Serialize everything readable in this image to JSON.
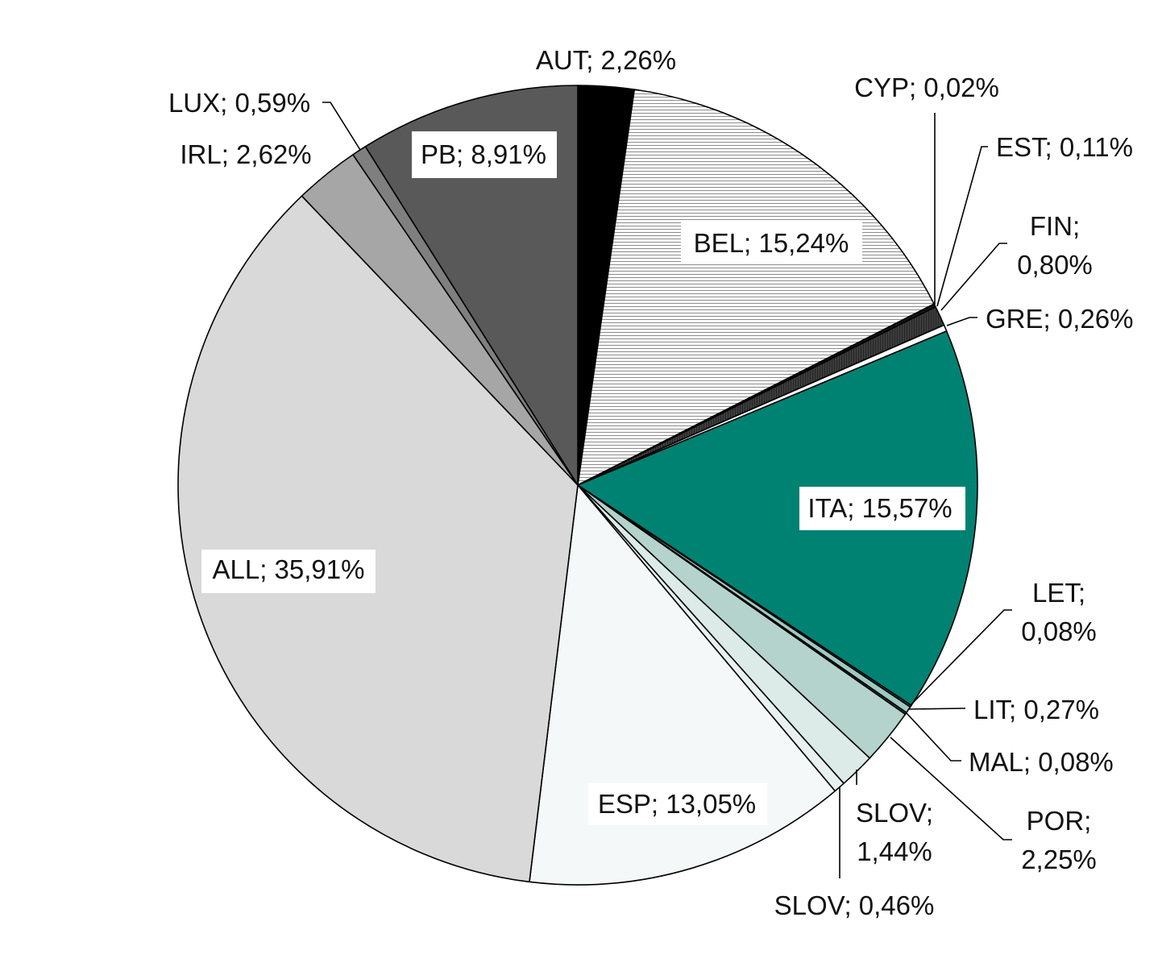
{
  "chart_data": {
    "type": "pie",
    "title": "",
    "start": "12 o'clock",
    "direction": "clockwise",
    "slices": [
      {
        "name": "AUT",
        "value": 2.26,
        "label": "AUT; 2,26%",
        "color": "#000000",
        "pattern": "solid"
      },
      {
        "name": "BEL",
        "value": 15.24,
        "label": "BEL; 15,24%",
        "color": "#ffffff",
        "pattern": "horizontal-lines"
      },
      {
        "name": "CYP",
        "value": 0.02,
        "label": "CYP; 0,02%",
        "color": "#ffffff",
        "pattern": "solid"
      },
      {
        "name": "EST",
        "value": 0.11,
        "label": "EST; 0,11%",
        "color": "#1a1a1a",
        "pattern": "solid"
      },
      {
        "name": "FIN",
        "value": 0.8,
        "label": "FIN; 0,80%",
        "color": "#3c3c3c",
        "pattern": "vertical-lines"
      },
      {
        "name": "GRE",
        "value": 0.26,
        "label": "GRE; 0,26%",
        "color": "#ffffff",
        "pattern": "solid"
      },
      {
        "name": "ITA",
        "value": 15.57,
        "label": "ITA; 15,57%",
        "color": "#008272",
        "pattern": "solid"
      },
      {
        "name": "LET",
        "value": 0.08,
        "label": "LET; 0,08%",
        "color": "#1f5f55",
        "pattern": "solid"
      },
      {
        "name": "LIT",
        "value": 0.27,
        "label": "LIT; 0,27%",
        "color": "#9fc8c0",
        "pattern": "solid"
      },
      {
        "name": "MAL",
        "value": 0.08,
        "label": "MAL; 0,08%",
        "color": "#2f4f4a",
        "pattern": "solid"
      },
      {
        "name": "POR",
        "value": 2.25,
        "label": "POR; 2,25%",
        "color": "#b4d3cd",
        "pattern": "solid"
      },
      {
        "name": "SLOV",
        "value": 1.44,
        "label": "SLOV; 1,44%",
        "color": "#dcebe8",
        "pattern": "solid"
      },
      {
        "name": "SLOV",
        "value": 0.46,
        "label": "SLOV; 0,46%",
        "color": "#e8f1ef",
        "pattern": "solid"
      },
      {
        "name": "ESP",
        "value": 13.05,
        "label": "ESP; 13,05%",
        "color": "#f4f8f8",
        "pattern": "solid"
      },
      {
        "name": "ALL",
        "value": 35.91,
        "label": "ALL; 35,91%",
        "color": "#d9d9d9",
        "pattern": "solid"
      },
      {
        "name": "IRL",
        "value": 2.62,
        "label": "IRL; 2,62%",
        "color": "#a6a6a6",
        "pattern": "solid"
      },
      {
        "name": "LUX",
        "value": 0.59,
        "label": "LUX; 0,59%",
        "color": "#7f7f7f",
        "pattern": "solid"
      },
      {
        "name": "PB",
        "value": 8.91,
        "label": "PB; 8,91%",
        "color": "#595959",
        "pattern": "solid"
      }
    ],
    "labels": [
      {
        "slice": 0,
        "lines": [
          "AUT; 2,26%"
        ],
        "boxed": false
      },
      {
        "slice": 1,
        "lines": [
          "BEL; 15,24%"
        ],
        "boxed": true
      },
      {
        "slice": 2,
        "lines": [
          "CYP; 0,02%"
        ],
        "boxed": false
      },
      {
        "slice": 3,
        "lines": [
          "EST; 0,11%"
        ],
        "boxed": false
      },
      {
        "slice": 4,
        "lines": [
          "FIN;",
          "0,80%"
        ],
        "boxed": false
      },
      {
        "slice": 5,
        "lines": [
          "GRE; 0,26%"
        ],
        "boxed": false
      },
      {
        "slice": 6,
        "lines": [
          "ITA; 15,57%"
        ],
        "boxed": true
      },
      {
        "slice": 7,
        "lines": [
          "LET;",
          "0,08%"
        ],
        "boxed": false
      },
      {
        "slice": 8,
        "lines": [
          "LIT; 0,27%"
        ],
        "boxed": false
      },
      {
        "slice": 9,
        "lines": [
          "MAL; 0,08%"
        ],
        "boxed": false
      },
      {
        "slice": 10,
        "lines": [
          "POR;",
          "2,25%"
        ],
        "boxed": false
      },
      {
        "slice": 11,
        "lines": [
          "SLOV;",
          "1,44%"
        ],
        "boxed": false
      },
      {
        "slice": 12,
        "lines": [
          "SLOV; 0,46%"
        ],
        "boxed": false
      },
      {
        "slice": 13,
        "lines": [
          "ESP; 13,05%"
        ],
        "boxed": true
      },
      {
        "slice": 14,
        "lines": [
          "ALL; 35,91%"
        ],
        "boxed": true
      },
      {
        "slice": 15,
        "lines": [
          "IRL; 2,62%"
        ],
        "boxed": false
      },
      {
        "slice": 16,
        "lines": [
          "LUX; 0,59%"
        ],
        "boxed": false
      },
      {
        "slice": 17,
        "lines": [
          "PB; 8,91%"
        ],
        "boxed": true
      }
    ],
    "legend": "none",
    "unit": "%"
  }
}
